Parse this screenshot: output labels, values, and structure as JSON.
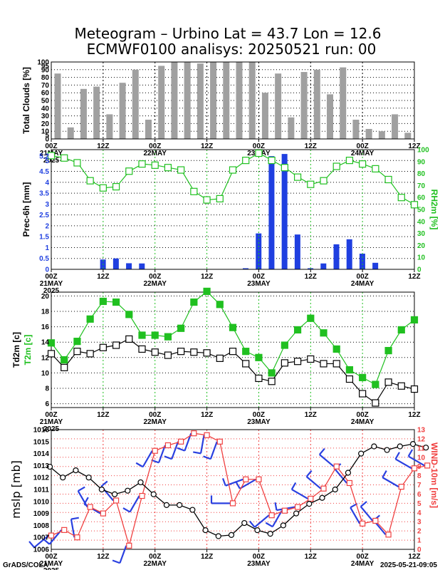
{
  "title_line1": "Meteogram – Urbino Lat = 43.7 Lon = 12.6",
  "title_line2": "ECMWF0100 analisys: 20250521 run: 00",
  "footer_left": "GrADS/COLA",
  "footer_right": "2025-05-21-09:05",
  "colors": {
    "bar_gray": "#a0a0a0",
    "bar_blue": "#1f3fe0",
    "green": "#20c020",
    "red": "#f04040",
    "wind_blue": "#2a40e0",
    "black": "#000000"
  },
  "x_axis": {
    "ticks": [
      "00Z",
      "12Z",
      "00Z",
      "12Z",
      "00Z",
      "12Z",
      "00Z",
      "12Z"
    ],
    "dates": [
      "21MAY",
      "22MAY",
      "23MAY",
      "24MAY"
    ],
    "year": "2025"
  },
  "chart_data": [
    {
      "type": "bar",
      "ylabel": "Total Clouds [%]",
      "ylim": [
        0,
        100
      ],
      "y_ticks": [
        "0",
        "5",
        "10",
        "20",
        "30",
        "40",
        "50",
        "60",
        "70",
        "80",
        "90",
        "95",
        "100"
      ],
      "values": [
        85,
        15,
        65,
        68,
        32,
        73,
        90,
        25,
        95,
        100,
        100,
        98,
        100,
        100,
        100,
        100,
        60,
        85,
        28,
        87,
        90,
        58,
        93,
        25,
        13,
        10,
        32,
        8,
        0
      ]
    },
    {
      "type": "bar+line",
      "ylabel": "Prec-6h [mm]",
      "ylabel_right": "RH2m [%]",
      "ylim": [
        0,
        5.5
      ],
      "ylim_right": [
        0,
        100
      ],
      "y_ticks": [
        "0",
        "0.5",
        "1",
        "1.5",
        "2",
        "2.5",
        "3",
        "3.5",
        "4",
        "4.5",
        "5",
        "5.2"
      ],
      "y_ticks_right": [
        "0",
        "10",
        "20",
        "30",
        "40",
        "50",
        "60",
        "70",
        "80",
        "90",
        "100"
      ],
      "precip": [
        0,
        0,
        0,
        0.45,
        0.5,
        0.28,
        0.27,
        0,
        0,
        0,
        0,
        0,
        0,
        0,
        0.05,
        1.65,
        5.2,
        5.3,
        1.6,
        0.05,
        0.27,
        1.15,
        1.38,
        0.72,
        0.3,
        0,
        0,
        0,
        0
      ],
      "rh": [
        95,
        93,
        89,
        74,
        68,
        69,
        82,
        88,
        87,
        85,
        83,
        65,
        58,
        59,
        83,
        91,
        97,
        91,
        85,
        77,
        71,
        74,
        86,
        91,
        88,
        84,
        75,
        60,
        54
      ]
    },
    {
      "type": "line",
      "ylabel": "Td2m [c]",
      "ylabel2": "T2m [c]",
      "ylim": [
        5.5,
        20.5
      ],
      "y_ticks": [
        "6",
        "8",
        "10",
        "12",
        "14",
        "16",
        "18",
        "20"
      ],
      "t2m": [
        13.9,
        11.7,
        14.1,
        17.0,
        19.3,
        19.2,
        17.6,
        14.9,
        14.9,
        14.7,
        15.8,
        19.2,
        20.6,
        18.9,
        15.9,
        12.8,
        12.0,
        10.0,
        13.6,
        15.6,
        17.1,
        15.2,
        13.1,
        10.4,
        9.4,
        8.5,
        12.9,
        15.6,
        16.9
      ],
      "td2m": [
        12.5,
        10.7,
        12.8,
        12.5,
        13.3,
        13.6,
        14.4,
        13.1,
        12.7,
        12.3,
        12.8,
        12.7,
        12.6,
        11.9,
        12.8,
        11.2,
        9.3,
        8.9,
        11.3,
        11.5,
        11.8,
        11.2,
        11.2,
        9.2,
        7.3,
        6.1,
        8.8,
        8.3,
        7.9
      ]
    },
    {
      "type": "line",
      "ylabel": "mslp [mb]",
      "ylabel_right": "WIND-10m [m/s]",
      "ylim": [
        1006,
        1016
      ],
      "ylim_right": [
        0,
        13
      ],
      "y_ticks": [
        "1006",
        "1007",
        "1008",
        "1009",
        "1010",
        "1011",
        "1012",
        "1013",
        "1014",
        "1015",
        "1016"
      ],
      "y_ticks_right": [
        "0",
        "1",
        "2",
        "3",
        "4",
        "5",
        "6",
        "7",
        "8",
        "9",
        "10",
        "11",
        "12",
        "13"
      ],
      "mslp": [
        1012.9,
        1012.0,
        1012.6,
        1012.0,
        1011.0,
        1010.6,
        1010.9,
        1011.6,
        1010.6,
        1009.7,
        1009.7,
        1009.3,
        1007.6,
        1007.1,
        1007.2,
        1008.2,
        1007.6,
        1007.3,
        1008.0,
        1009.0,
        1009.8,
        1010.3,
        1011.0,
        1012.4,
        1014.0,
        1014.6,
        1014.3,
        1014.6,
        1014.8,
        1014.5
      ],
      "wind": [
        1.5,
        2.1,
        1.3,
        4.6,
        3.9,
        5.3,
        0.4,
        5.8,
        10.7,
        11.3,
        11.7,
        12.6,
        12.4,
        11.7,
        5.0,
        7.6,
        7.6,
        3.7,
        4.2,
        4.6,
        5.5,
        6.6,
        9.0,
        7.2,
        2.8,
        3.1,
        1.6,
        6.8,
        8.8,
        9.1
      ],
      "wind_dir": [
        230,
        220,
        350,
        330,
        300,
        320,
        200,
        210,
        210,
        200,
        200,
        200,
        190,
        200,
        270,
        250,
        240,
        230,
        210,
        260,
        300,
        310,
        310,
        320,
        330,
        320,
        320,
        300,
        300,
        300
      ]
    }
  ]
}
